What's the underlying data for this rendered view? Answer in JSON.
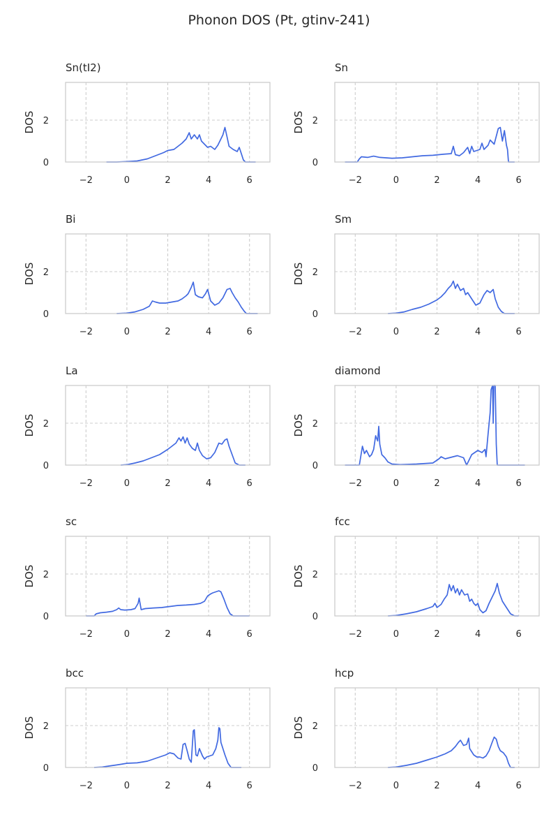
{
  "figure": {
    "title": "Phonon DOS (Pt, gtinv-241)"
  },
  "style": {
    "line_color": "#4169e1",
    "axes_edge_color": "#cccccc",
    "grid_color": "#cccccc",
    "text_color": "#262626"
  },
  "chart_data": [
    {
      "type": "line",
      "title": "Sn(tI2)",
      "xlabel": "",
      "ylabel": "DOS",
      "xlim": [
        -3,
        7
      ],
      "ylim": [
        0,
        3.8
      ],
      "xticks": [
        -2,
        0,
        2,
        4,
        6
      ],
      "yticks": [
        0,
        2
      ],
      "grid": true,
      "grid_style": "dashed",
      "x": [
        -1.0,
        -0.5,
        0.0,
        0.5,
        1.0,
        1.4,
        1.8,
        2.0,
        2.3,
        2.5,
        2.7,
        2.9,
        3.05,
        3.15,
        3.3,
        3.45,
        3.55,
        3.65,
        3.8,
        3.95,
        4.1,
        4.3,
        4.45,
        4.6,
        4.7,
        4.8,
        4.9,
        5.0,
        5.2,
        5.4,
        5.5,
        5.6,
        5.7,
        5.8,
        6.0,
        6.3
      ],
      "y": [
        0.0,
        0.0,
        0.02,
        0.05,
        0.15,
        0.3,
        0.45,
        0.55,
        0.6,
        0.75,
        0.9,
        1.1,
        1.4,
        1.1,
        1.3,
        1.1,
        1.3,
        1.0,
        0.85,
        0.7,
        0.75,
        0.6,
        0.8,
        1.1,
        1.3,
        1.65,
        1.2,
        0.75,
        0.6,
        0.5,
        0.7,
        0.4,
        0.1,
        0.0,
        0.0,
        0.0
      ]
    },
    {
      "type": "line",
      "title": "Sn",
      "xlabel": "",
      "ylabel": "DOS",
      "xlim": [
        -3,
        7
      ],
      "ylim": [
        0,
        3.8
      ],
      "xticks": [
        -2,
        0,
        2,
        4,
        6
      ],
      "yticks": [
        0,
        2
      ],
      "grid": true,
      "grid_style": "dashed",
      "x": [
        -2.5,
        -1.9,
        -1.8,
        -1.7,
        -1.4,
        -1.1,
        -0.8,
        -0.5,
        -0.2,
        0.3,
        0.8,
        1.3,
        1.8,
        2.3,
        2.7,
        2.8,
        2.9,
        3.1,
        3.3,
        3.5,
        3.6,
        3.7,
        3.8,
        4.1,
        4.2,
        4.3,
        4.5,
        4.6,
        4.8,
        5.0,
        5.1,
        5.2,
        5.3,
        5.4,
        5.45,
        5.5,
        5.6,
        5.8
      ],
      "y": [
        0.0,
        0.0,
        0.15,
        0.25,
        0.22,
        0.28,
        0.22,
        0.2,
        0.18,
        0.2,
        0.25,
        0.3,
        0.32,
        0.37,
        0.4,
        0.75,
        0.35,
        0.3,
        0.45,
        0.7,
        0.4,
        0.75,
        0.5,
        0.6,
        0.9,
        0.6,
        0.8,
        1.05,
        0.85,
        1.6,
        1.65,
        1.0,
        1.5,
        0.8,
        0.6,
        0.0,
        0.0,
        0.0
      ]
    },
    {
      "type": "line",
      "title": "Bi",
      "xlabel": "",
      "ylabel": "DOS",
      "xlim": [
        -3,
        7
      ],
      "ylim": [
        0,
        3.8
      ],
      "xticks": [
        -2,
        0,
        2,
        4,
        6
      ],
      "yticks": [
        0,
        2
      ],
      "grid": true,
      "grid_style": "dashed",
      "x": [
        -0.5,
        0.0,
        0.4,
        0.8,
        1.1,
        1.25,
        1.4,
        1.6,
        1.9,
        2.2,
        2.5,
        2.7,
        2.9,
        3.0,
        3.15,
        3.25,
        3.35,
        3.5,
        3.7,
        3.85,
        3.95,
        4.1,
        4.3,
        4.5,
        4.7,
        4.9,
        5.05,
        5.15,
        5.3,
        5.45,
        5.6,
        5.75,
        5.85,
        6.0,
        6.4
      ],
      "y": [
        0.0,
        0.02,
        0.08,
        0.2,
        0.35,
        0.6,
        0.55,
        0.5,
        0.5,
        0.55,
        0.6,
        0.7,
        0.85,
        0.95,
        1.25,
        1.5,
        0.9,
        0.8,
        0.75,
        0.95,
        1.15,
        0.6,
        0.4,
        0.5,
        0.75,
        1.15,
        1.2,
        1.0,
        0.75,
        0.55,
        0.3,
        0.1,
        0.0,
        0.0,
        0.0
      ]
    },
    {
      "type": "line",
      "title": "Sm",
      "xlabel": "",
      "ylabel": "DOS",
      "xlim": [
        -3,
        7
      ],
      "ylim": [
        0,
        3.8
      ],
      "xticks": [
        -2,
        0,
        2,
        4,
        6
      ],
      "yticks": [
        0,
        2
      ],
      "grid": true,
      "grid_style": "dashed",
      "x": [
        -0.4,
        0.0,
        0.4,
        0.8,
        1.2,
        1.6,
        2.0,
        2.2,
        2.4,
        2.55,
        2.7,
        2.8,
        2.9,
        3.0,
        3.15,
        3.3,
        3.4,
        3.5,
        3.7,
        3.9,
        4.1,
        4.3,
        4.45,
        4.6,
        4.75,
        4.85,
        5.0,
        5.15,
        5.3,
        5.45,
        5.6,
        5.8
      ],
      "y": [
        0.0,
        0.02,
        0.08,
        0.2,
        0.3,
        0.45,
        0.65,
        0.8,
        1.0,
        1.2,
        1.35,
        1.55,
        1.2,
        1.4,
        1.1,
        1.2,
        0.9,
        1.0,
        0.7,
        0.4,
        0.5,
        0.9,
        1.1,
        1.0,
        1.15,
        0.7,
        0.3,
        0.1,
        0.0,
        0.0,
        0.0,
        0.0
      ]
    },
    {
      "type": "line",
      "title": "La",
      "xlabel": "",
      "ylabel": "DOS",
      "xlim": [
        -3,
        7
      ],
      "ylim": [
        0,
        3.8
      ],
      "xticks": [
        -2,
        0,
        2,
        4,
        6
      ],
      "yticks": [
        0,
        2
      ],
      "grid": true,
      "grid_style": "dashed",
      "x": [
        -0.3,
        0.0,
        0.4,
        0.8,
        1.2,
        1.6,
        2.0,
        2.2,
        2.4,
        2.55,
        2.65,
        2.75,
        2.85,
        2.95,
        3.05,
        3.2,
        3.35,
        3.45,
        3.55,
        3.7,
        3.9,
        4.1,
        4.3,
        4.5,
        4.65,
        4.8,
        4.9,
        5.0,
        5.15,
        5.3,
        5.5,
        5.8
      ],
      "y": [
        0.0,
        0.02,
        0.1,
        0.2,
        0.35,
        0.5,
        0.75,
        0.9,
        1.05,
        1.3,
        1.15,
        1.35,
        1.05,
        1.3,
        1.0,
        0.8,
        0.7,
        1.05,
        0.7,
        0.45,
        0.3,
        0.35,
        0.6,
        1.05,
        1.0,
        1.2,
        1.25,
        0.9,
        0.5,
        0.1,
        0.0,
        0.0
      ]
    },
    {
      "type": "line",
      "title": "diamond",
      "xlabel": "",
      "ylabel": "DOS",
      "xlim": [
        -3,
        7
      ],
      "ylim": [
        0,
        3.8
      ],
      "xticks": [
        -2,
        0,
        2,
        4,
        6
      ],
      "yticks": [
        0,
        2
      ],
      "grid": true,
      "grid_style": "dashed",
      "x": [
        -2.5,
        -1.8,
        -1.65,
        -1.55,
        -1.45,
        -1.3,
        -1.2,
        -1.1,
        -1.0,
        -0.9,
        -0.85,
        -0.8,
        -0.7,
        -0.55,
        -0.4,
        -0.2,
        0.2,
        1.0,
        1.8,
        2.1,
        2.2,
        2.4,
        2.6,
        2.8,
        3.0,
        3.3,
        3.45,
        3.55,
        3.7,
        4.0,
        4.2,
        4.35,
        4.4,
        4.5,
        4.6,
        4.65,
        4.72,
        4.75,
        4.78,
        4.85,
        4.9,
        4.95,
        5.0,
        6.0,
        6.3
      ],
      "y": [
        0.0,
        0.0,
        0.9,
        0.55,
        0.7,
        0.4,
        0.5,
        0.75,
        1.4,
        1.15,
        1.85,
        1.0,
        0.5,
        0.35,
        0.15,
        0.05,
        0.02,
        0.05,
        0.1,
        0.3,
        0.4,
        0.3,
        0.35,
        0.4,
        0.45,
        0.35,
        0.0,
        0.2,
        0.5,
        0.7,
        0.6,
        0.75,
        0.4,
        1.5,
        2.5,
        3.6,
        3.8,
        2.0,
        3.8,
        3.8,
        1.0,
        0.0,
        0.0,
        0.0,
        0.0
      ]
    },
    {
      "type": "line",
      "title": "sc",
      "xlabel": "",
      "ylabel": "DOS",
      "xlim": [
        -3,
        7
      ],
      "ylim": [
        0,
        3.8
      ],
      "xticks": [
        -2,
        0,
        2,
        4,
        6
      ],
      "yticks": [
        0,
        2
      ],
      "grid": true,
      "grid_style": "dashed",
      "x": [
        -2.0,
        -1.6,
        -1.5,
        -1.3,
        -1.0,
        -0.7,
        -0.5,
        -0.4,
        -0.3,
        -0.1,
        0.2,
        0.4,
        0.55,
        0.6,
        0.7,
        0.9,
        1.3,
        1.7,
        2.1,
        2.5,
        2.9,
        3.3,
        3.6,
        3.8,
        3.95,
        4.1,
        4.2,
        4.35,
        4.5,
        4.6,
        4.75,
        4.9,
        5.05,
        5.2,
        5.4,
        6.0
      ],
      "y": [
        0.0,
        0.0,
        0.1,
        0.15,
        0.18,
        0.22,
        0.3,
        0.38,
        0.3,
        0.28,
        0.3,
        0.35,
        0.6,
        0.85,
        0.3,
        0.35,
        0.38,
        0.4,
        0.45,
        0.5,
        0.52,
        0.55,
        0.6,
        0.7,
        0.95,
        1.05,
        1.1,
        1.15,
        1.2,
        1.15,
        0.8,
        0.4,
        0.1,
        0.0,
        0.0,
        0.0
      ]
    },
    {
      "type": "line",
      "title": "fcc",
      "xlabel": "",
      "ylabel": "DOS",
      "xlim": [
        -3,
        7
      ],
      "ylim": [
        0,
        3.8
      ],
      "xticks": [
        -2,
        0,
        2,
        4,
        6
      ],
      "yticks": [
        0,
        2
      ],
      "grid": true,
      "grid_style": "dashed",
      "x": [
        -0.4,
        0.0,
        0.5,
        1.0,
        1.5,
        1.8,
        1.9,
        2.0,
        2.2,
        2.35,
        2.5,
        2.6,
        2.7,
        2.8,
        2.9,
        3.0,
        3.1,
        3.2,
        3.35,
        3.5,
        3.6,
        3.7,
        3.8,
        3.9,
        4.0,
        4.1,
        4.25,
        4.4,
        4.55,
        4.7,
        4.85,
        4.95,
        5.05,
        5.2,
        5.4,
        5.6,
        5.8,
        6.0
      ],
      "y": [
        0.0,
        0.02,
        0.1,
        0.2,
        0.35,
        0.45,
        0.6,
        0.4,
        0.55,
        0.8,
        1.0,
        1.5,
        1.2,
        1.45,
        1.1,
        1.3,
        1.0,
        1.25,
        1.0,
        1.05,
        0.7,
        0.8,
        0.6,
        0.5,
        0.6,
        0.3,
        0.15,
        0.25,
        0.6,
        0.9,
        1.2,
        1.55,
        1.1,
        0.7,
        0.4,
        0.1,
        0.0,
        0.0
      ]
    },
    {
      "type": "line",
      "title": "bcc",
      "xlabel": "",
      "ylabel": "DOS",
      "xlim": [
        -3,
        7
      ],
      "ylim": [
        0,
        3.8
      ],
      "xticks": [
        -2,
        0,
        2,
        4,
        6
      ],
      "yticks": [
        0,
        2
      ],
      "grid": true,
      "grid_style": "dashed",
      "x": [
        -1.6,
        -1.2,
        -0.8,
        -0.5,
        -0.3,
        0.0,
        0.5,
        1.0,
        1.3,
        1.6,
        1.9,
        2.1,
        2.3,
        2.5,
        2.65,
        2.75,
        2.85,
        2.95,
        3.05,
        3.15,
        3.25,
        3.3,
        3.38,
        3.45,
        3.55,
        3.7,
        3.8,
        3.9,
        4.05,
        4.2,
        4.35,
        4.45,
        4.5,
        4.55,
        4.6,
        4.7,
        4.8,
        4.95,
        5.1,
        5.3,
        5.6
      ],
      "y": [
        0.0,
        0.02,
        0.08,
        0.12,
        0.15,
        0.2,
        0.22,
        0.3,
        0.4,
        0.5,
        0.6,
        0.7,
        0.65,
        0.45,
        0.4,
        1.1,
        1.15,
        0.8,
        0.4,
        0.25,
        1.75,
        1.8,
        0.6,
        0.55,
        0.9,
        0.55,
        0.4,
        0.5,
        0.55,
        0.6,
        0.9,
        1.3,
        1.9,
        1.85,
        1.2,
        0.9,
        0.6,
        0.2,
        0.0,
        0.0,
        0.0
      ]
    },
    {
      "type": "line",
      "title": "hcp",
      "xlabel": "",
      "ylabel": "DOS",
      "xlim": [
        -3,
        7
      ],
      "ylim": [
        0,
        3.8
      ],
      "xticks": [
        -2,
        0,
        2,
        4,
        6
      ],
      "yticks": [
        0,
        2
      ],
      "grid": true,
      "grid_style": "dashed",
      "x": [
        -0.4,
        0.0,
        0.5,
        1.0,
        1.5,
        2.0,
        2.4,
        2.7,
        2.9,
        3.05,
        3.15,
        3.3,
        3.45,
        3.55,
        3.6,
        3.7,
        3.8,
        3.95,
        4.1,
        4.25,
        4.4,
        4.55,
        4.7,
        4.8,
        4.9,
        5.0,
        5.1,
        5.25,
        5.4,
        5.5,
        5.6,
        5.8
      ],
      "y": [
        0.0,
        0.02,
        0.1,
        0.2,
        0.35,
        0.5,
        0.65,
        0.8,
        1.0,
        1.2,
        1.3,
        1.05,
        1.1,
        1.4,
        0.9,
        0.75,
        0.6,
        0.5,
        0.5,
        0.45,
        0.55,
        0.8,
        1.2,
        1.45,
        1.35,
        1.0,
        0.8,
        0.7,
        0.5,
        0.2,
        0.0,
        0.0
      ]
    }
  ]
}
